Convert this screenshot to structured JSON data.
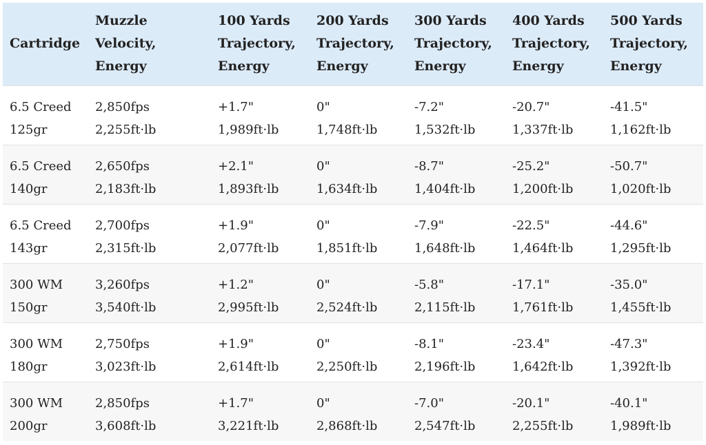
{
  "table": {
    "headers": [
      [
        "Cartridge"
      ],
      [
        "Muzzle",
        "Velocity,",
        "Energy"
      ],
      [
        "100 Yards",
        "Trajectory,",
        "Energy"
      ],
      [
        "200 Yards",
        "Trajectory,",
        "Energy"
      ],
      [
        "300 Yards",
        "Trajectory,",
        "Energy"
      ],
      [
        "400 Yards",
        "Trajectory,",
        "Energy"
      ],
      [
        "500 Yards",
        "Trajectory,",
        "Energy"
      ]
    ],
    "rows": [
      [
        [
          "6.5 Creed",
          "125gr"
        ],
        [
          "2,850fps",
          "2,255ft·lb"
        ],
        [
          "+1.7\"",
          "1,989ft·lb"
        ],
        [
          "0\"",
          "1,748ft·lb"
        ],
        [
          "-7.2\"",
          "1,532ft·lb"
        ],
        [
          "-20.7\"",
          "1,337ft·lb"
        ],
        [
          "-41.5\"",
          "1,162ft·lb"
        ]
      ],
      [
        [
          "6.5 Creed",
          "140gr"
        ],
        [
          "2,650fps",
          "2,183ft·lb"
        ],
        [
          "+2.1\"",
          "1,893ft·lb"
        ],
        [
          "0\"",
          "1,634ft·lb"
        ],
        [
          "-8.7\"",
          "1,404ft·lb"
        ],
        [
          "-25.2\"",
          "1,200ft·lb"
        ],
        [
          "-50.7\"",
          "1,020ft·lb"
        ]
      ],
      [
        [
          "6.5 Creed",
          "143gr"
        ],
        [
          "2,700fps",
          "2,315ft·lb"
        ],
        [
          "+1.9\"",
          "2,077ft·lb"
        ],
        [
          "0\"",
          "1,851ft·lb"
        ],
        [
          "-7.9\"",
          "1,648ft·lb"
        ],
        [
          "-22.5\"",
          "1,464ft·lb"
        ],
        [
          "-44.6\"",
          "1,295ft·lb"
        ]
      ],
      [
        [
          "300 WM",
          "150gr"
        ],
        [
          "3,260fps",
          "3,540ft·lb"
        ],
        [
          "+1.2\"",
          "2,995ft·lb"
        ],
        [
          "0\"",
          "2,524ft·lb"
        ],
        [
          "-5.8\"",
          "2,115ft·lb"
        ],
        [
          "-17.1\"",
          "1,761ft·lb"
        ],
        [
          "-35.0\"",
          "1,455ft·lb"
        ]
      ],
      [
        [
          "300 WM",
          "180gr"
        ],
        [
          "2,750fps",
          "3,023ft·lb"
        ],
        [
          "+1.9\"",
          "2,614ft·lb"
        ],
        [
          "0\"",
          "2,250ft·lb"
        ],
        [
          "-8.1\"",
          "2,196ft·lb"
        ],
        [
          "-23.4\"",
          "1,642ft·lb"
        ],
        [
          "-47.3\"",
          "1,392ft·lb"
        ]
      ],
      [
        [
          "300 WM",
          "200gr"
        ],
        [
          "2,850fps",
          "3,608ft·lb"
        ],
        [
          "+1.7\"",
          "3,221ft·lb"
        ],
        [
          "0\"",
          "2,868ft·lb"
        ],
        [
          "-7.0\"",
          "2,547ft·lb"
        ],
        [
          "-20.1\"",
          "2,255ft·lb"
        ],
        [
          "-40.1\"",
          "1,989ft·lb"
        ]
      ]
    ]
  }
}
